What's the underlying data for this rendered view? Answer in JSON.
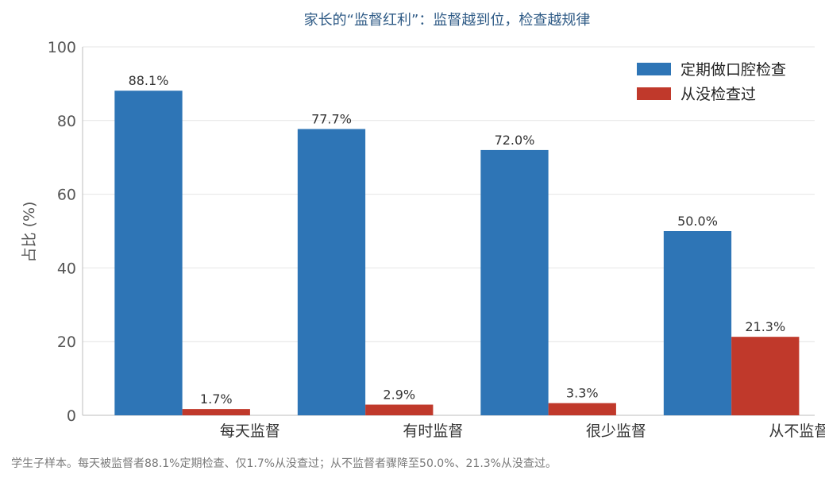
{
  "chart_data": {
    "type": "bar",
    "title": "家长的“监督红利”：监督越到位，检查越规律",
    "xlabel": "",
    "ylabel": "占比 (%)",
    "ylim": [
      0,
      100
    ],
    "yticks": [
      0,
      20,
      40,
      60,
      80,
      100
    ],
    "grid": true,
    "legend_position": "top-right",
    "categories": [
      "每天监督",
      "有时监督",
      "很少监督",
      "从不监督"
    ],
    "series": [
      {
        "name": "定期做口腔检查",
        "color": "#2e75b6",
        "values": [
          88.1,
          77.7,
          72.0,
          50.0
        ],
        "labels": [
          "88.1%",
          "77.7%",
          "72.0%",
          "50.0%"
        ]
      },
      {
        "name": "从没检查过",
        "color": "#c0392b",
        "values": [
          1.7,
          2.9,
          3.3,
          21.3
        ],
        "labels": [
          "1.7%",
          "2.9%",
          "3.3%",
          "21.3%"
        ]
      }
    ]
  },
  "footnote": "学生子样本。每天被监督者88.1%定期检查、仅1.7%从没查过；从不监督者骤降至50.0%、21.3%从没查过。"
}
